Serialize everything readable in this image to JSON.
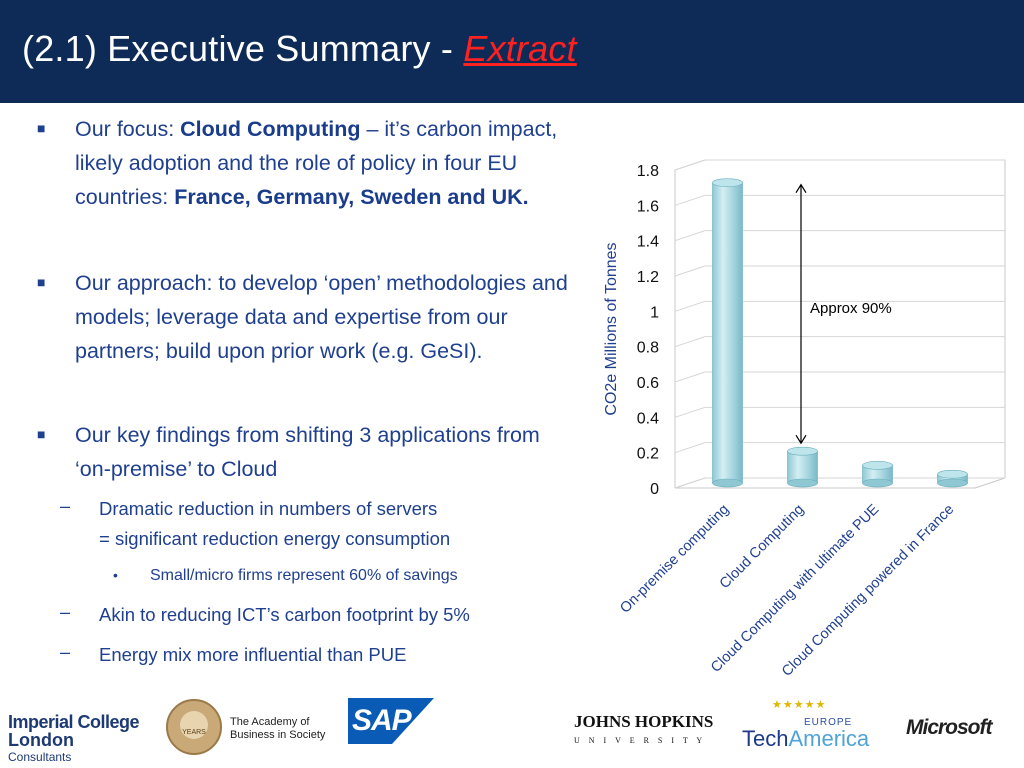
{
  "header": {
    "title_main": "(2.1) Executive Summary - ",
    "title_accent": "Extract",
    "bg_color": "#0d2b56",
    "accent_color": "#ff2020"
  },
  "bullets": {
    "b1": {
      "prefix": "Our focus: ",
      "bold1": "Cloud Computing",
      "mid": " – it’s carbon impact, likely adoption and the role of policy in four EU countries: ",
      "bold2": "France, Germany, Sweden and UK."
    },
    "b2": "Our approach: to develop ‘open’ methodologies and models; leverage data and expertise from our partners; build upon prior work (e.g. GeSI).",
    "b3": "Our key findings from shifting 3 applications from ‘on-premise’ to Cloud",
    "sub1_line1": "Dramatic reduction in numbers of servers",
    "sub1_line2": "= significant reduction energy consumption",
    "subsub1": "Small/micro firms represent 60% of savings",
    "sub2": "Akin to reducing ICT’s carbon footprint by 5%",
    "sub3": "Energy mix more influential than PUE"
  },
  "chart_data": {
    "type": "bar",
    "categories": [
      "On-premise computing",
      "Cloud Computing",
      "Cloud Computing with ultimate PUE",
      "Cloud Computing powered in France"
    ],
    "values": [
      1.7,
      0.18,
      0.1,
      0.05
    ],
    "ylabel": "CO2e Millions of Tonnes",
    "ylim": [
      0,
      1.8
    ],
    "yticks": [
      "0",
      "0.2",
      "0.4",
      "0.6",
      "0.8",
      "1",
      "1.2",
      "1.4",
      "1.6",
      "1.8"
    ],
    "annotation": "Approx 90%",
    "bar_color": "#9fd3dd",
    "label_color": "#1f3f8f"
  },
  "footer": {
    "imperial_line1": "Imperial College",
    "imperial_line2": "London",
    "imperial_line3": "Consultants",
    "academy_seal": "YEARS",
    "academy_line1": "The Academy of",
    "academy_line2": "Business in Society",
    "sap": "SAP",
    "jhu_line1": "JOHNS HOPKINS",
    "jhu_line2": "U N I V E R S I T Y",
    "techamerica_europe": "EUROPE",
    "techamerica_tech": "Tech",
    "techamerica_america": "America",
    "microsoft": "Microsoft"
  }
}
